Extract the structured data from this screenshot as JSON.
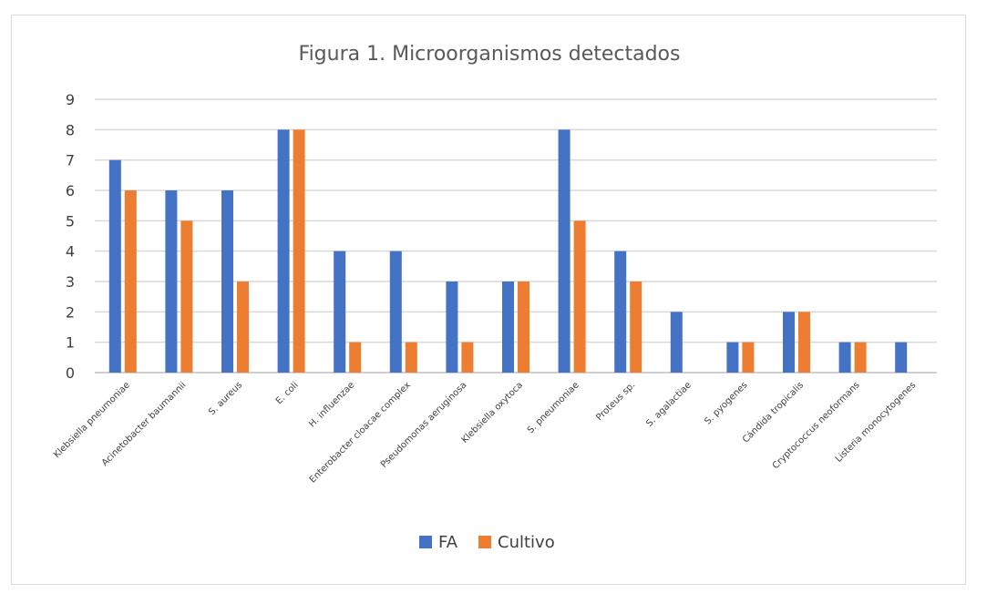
{
  "chart_data": {
    "type": "bar",
    "title": "Figura 1. Microorganismos detectados",
    "xlabel": "",
    "ylabel": "",
    "ylim": [
      0,
      9
    ],
    "yticks": [
      0,
      1,
      2,
      3,
      4,
      5,
      6,
      7,
      8,
      9
    ],
    "grid": true,
    "legend_position": "bottom",
    "categories": [
      "Klebsiella pneumoniae",
      "Acinetobacter baumannii",
      "S. aureus",
      "E. coli",
      "H. influenzae",
      "Enterobacter cloacae complex",
      "Pseudomonas aeruginosa",
      "Klebsiella oxytoca",
      "S. pneumoniae",
      "Proteus sp.",
      "S. agalactiae",
      "S. pyogenes",
      "Cándida tropicalis",
      "Cryptococcus neoformans",
      "Listeria monocytogenes"
    ],
    "series": [
      {
        "name": "FA",
        "color": "#4472C4",
        "values": [
          7,
          6,
          6,
          8,
          4,
          4,
          3,
          3,
          8,
          4,
          2,
          1,
          2,
          1,
          1
        ]
      },
      {
        "name": "Cultivo",
        "color": "#ED7D31",
        "values": [
          6,
          5,
          3,
          8,
          1,
          1,
          1,
          3,
          5,
          3,
          0,
          1,
          2,
          1,
          0
        ]
      }
    ]
  }
}
